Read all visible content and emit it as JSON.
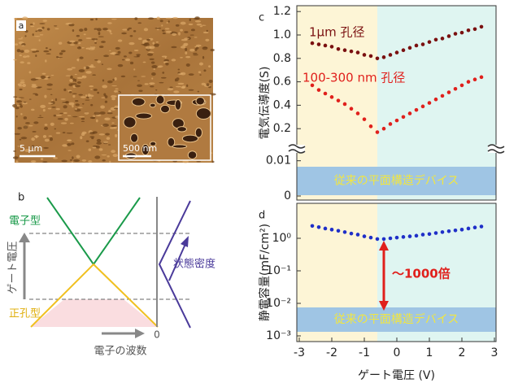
{
  "panel_a": {
    "label": "a",
    "scale_bar": "5 µm",
    "inset_scale_bar": "500 nm"
  },
  "panel_b": {
    "label": "b",
    "electron_type": "電子型",
    "gate_voltage": "ゲート電圧",
    "hole_type": "正孔型",
    "density_of_states": "状態密度",
    "zero": "0",
    "wavenumber": "電子の波数"
  },
  "chart_data": [
    {
      "type": "scatter",
      "panel_label": "c",
      "ylabel": "電気伝導度(S)",
      "x": [
        -2.6,
        -2.4,
        -2.2,
        -2,
        -1.8,
        -1.6,
        -1.4,
        -1.2,
        -1,
        -0.8,
        -0.6,
        -0.4,
        -0.2,
        0,
        0.2,
        0.4,
        0.6,
        0.8,
        1,
        1.2,
        1.4,
        1.6,
        1.8,
        2,
        2.2,
        2.4,
        2.6
      ],
      "xlim": [
        -3,
        3
      ],
      "ylim": [
        0.1,
        1.25
      ],
      "yticks": [
        0.2,
        0.4,
        0.6,
        0.8,
        {
          "value": 1,
          "label": "1.0"
        },
        1.2
      ],
      "lower_ylim": [
        0,
        0.012
      ],
      "lower_yticks": [
        0,
        0.01
      ],
      "series": [
        {
          "name": "1µm 孔径",
          "color": "#7a1010",
          "values": [
            0.93,
            0.92,
            0.91,
            0.9,
            0.88,
            0.87,
            0.86,
            0.85,
            0.83,
            0.82,
            0.8,
            0.81,
            0.83,
            0.85,
            0.87,
            0.89,
            0.91,
            0.92,
            0.94,
            0.96,
            0.97,
            0.99,
            1.01,
            1.02,
            1.04,
            1.05,
            1.07
          ]
        },
        {
          "name": "100-300 nm 孔径",
          "color": "#e0201c",
          "values": [
            0.57,
            0.53,
            0.5,
            0.47,
            0.44,
            0.41,
            0.37,
            0.33,
            0.28,
            0.22,
            0.17,
            0.2,
            0.24,
            0.27,
            0.3,
            0.33,
            0.36,
            0.39,
            0.42,
            0.45,
            0.48,
            0.51,
            0.54,
            0.57,
            0.6,
            0.62,
            0.64
          ]
        }
      ],
      "boundary_x": -0.6,
      "band_label": "従来の平面構造デバイス"
    },
    {
      "type": "scatter",
      "panel_label": "d",
      "ylabel": "静電容量(mF/cm²)",
      "xlabel": "ゲート電圧 (V)",
      "x": [
        -2.6,
        -2.4,
        -2.2,
        -2,
        -1.8,
        -1.6,
        -1.4,
        -1.2,
        -1,
        -0.8,
        -0.6,
        -0.4,
        -0.2,
        0,
        0.2,
        0.4,
        0.6,
        0.8,
        1,
        1.2,
        1.4,
        1.6,
        1.8,
        2,
        2.2,
        2.4,
        2.6
      ],
      "xlim": [
        -3,
        3
      ],
      "xticks": [
        -3,
        -2,
        -1,
        0,
        1,
        2,
        3
      ],
      "ylim": [
        0.001,
        10
      ],
      "log_y": true,
      "yticks": [
        {
          "value": 0.001,
          "label": "10⁻³"
        },
        {
          "value": 0.01,
          "label": "10⁻²"
        },
        {
          "value": 0.1,
          "label": "10⁻¹"
        },
        {
          "value": 1,
          "label": "10⁰"
        }
      ],
      "series": [
        {
          "color": "#1f2fc8",
          "values": [
            2.4,
            2.2,
            2,
            1.85,
            1.7,
            1.55,
            1.4,
            1.3,
            1.15,
            1.05,
            0.95,
            0.95,
            1,
            1.05,
            1.1,
            1.15,
            1.2,
            1.3,
            1.35,
            1.45,
            1.55,
            1.65,
            1.75,
            1.85,
            2,
            2.15,
            2.3
          ]
        }
      ],
      "boundary_x": -0.6,
      "band_label": "従来の平面構造デバイス",
      "annotation": "～1000倍"
    }
  ]
}
